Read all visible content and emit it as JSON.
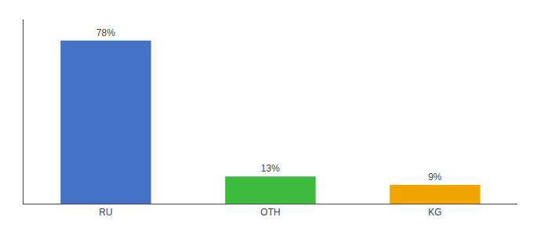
{
  "chart_data": {
    "type": "bar",
    "categories": [
      "RU",
      "OTH",
      "KG"
    ],
    "values": [
      78,
      13,
      9
    ],
    "value_labels": [
      "78%",
      "13%",
      "9%"
    ],
    "colors": [
      "#4472c4",
      "#3dbb3d",
      "#f0a500"
    ],
    "ylim": [
      0,
      88
    ],
    "data_labels": true,
    "tick_labels": "x",
    "grid": false
  }
}
